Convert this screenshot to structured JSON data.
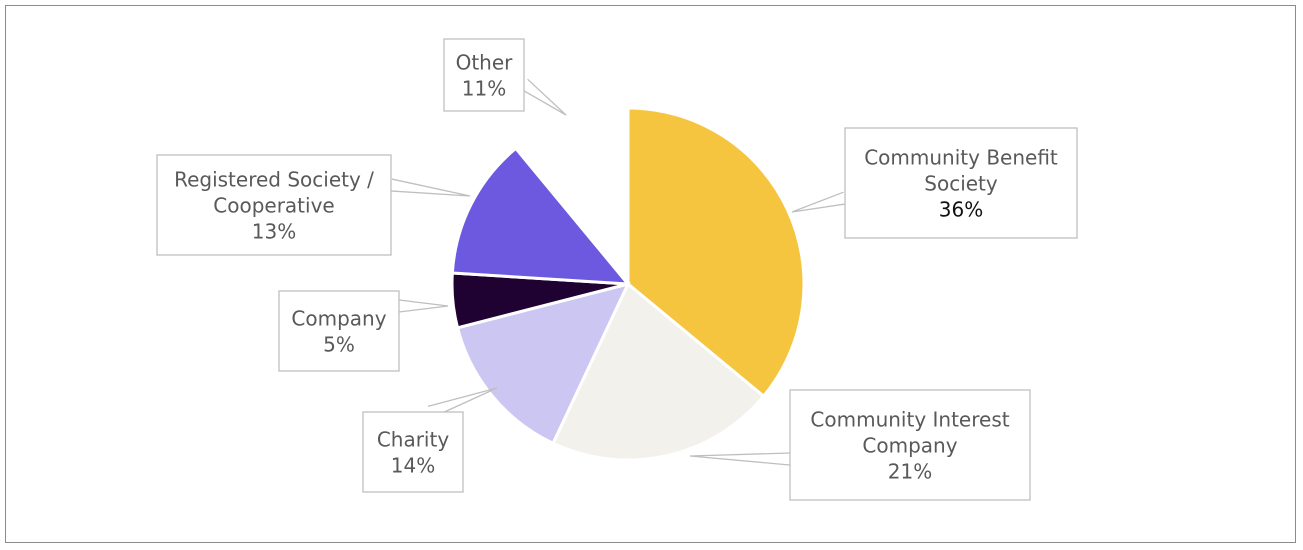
{
  "chart_data": {
    "type": "pie",
    "title": "",
    "slices": [
      {
        "label": "Community Benefit Society",
        "label_lines": [
          "Community Benefit",
          "Society"
        ],
        "value": 36,
        "value_text": "36%",
        "color": "#F6C540"
      },
      {
        "label": "Community Interest Company",
        "label_lines": [
          "Community Interest",
          "Company"
        ],
        "value": 21,
        "value_text": "21%",
        "color": "#F3F1EC"
      },
      {
        "label": "Charity",
        "label_lines": [
          "Charity"
        ],
        "value": 14,
        "value_text": "14%",
        "color": "#CCC6F3"
      },
      {
        "label": "Company",
        "label_lines": [
          "Company"
        ],
        "value": 5,
        "value_text": "5%",
        "color": "#1F0231"
      },
      {
        "label": "Registered Society / Cooperative",
        "label_lines": [
          "Registered Society /",
          "Cooperative"
        ],
        "value": 13,
        "value_text": "13%",
        "color": "#6C59E0"
      },
      {
        "label": "Other",
        "label_lines": [
          "Other"
        ],
        "value": 11,
        "value_text": "11%",
        "color": "#FFFFFF",
        "exploded": true
      }
    ],
    "start_angle_deg": 0,
    "direction": "clockwise",
    "legend": "none",
    "data_labels": "callouts"
  }
}
